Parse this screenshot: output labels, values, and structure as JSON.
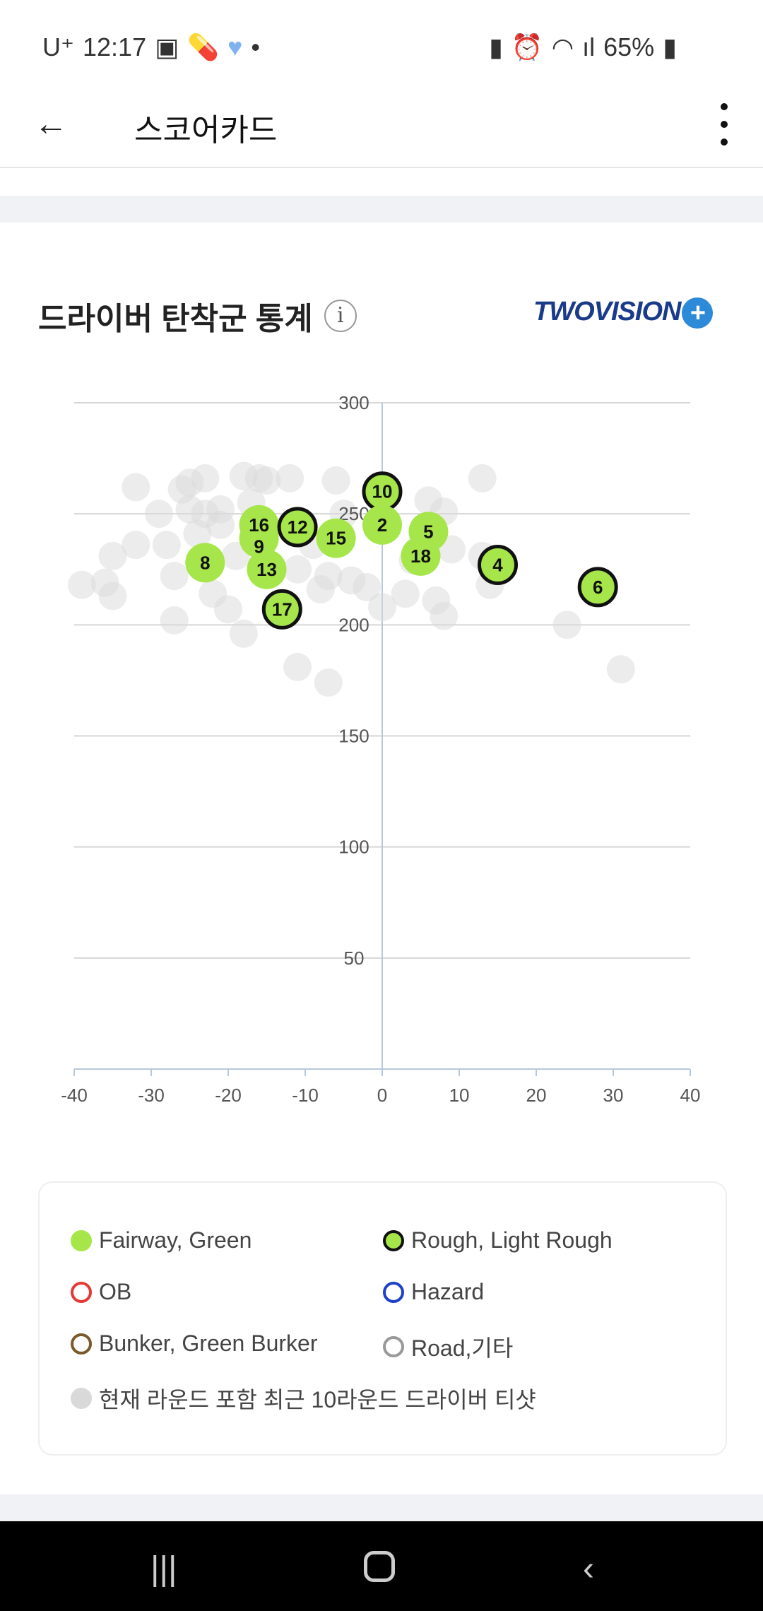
{
  "status": {
    "carrier": "U⁺",
    "time": "12:17",
    "battery": "65%"
  },
  "appbar": {
    "title": "스코어카드"
  },
  "section": {
    "title": "드라이버 탄착군 통계",
    "info": "i",
    "logo": "TWOVISION",
    "logo_badge": "PLUS"
  },
  "chart_data": {
    "type": "scatter",
    "xlim": [
      -40,
      40
    ],
    "ylim": [
      0,
      300
    ],
    "xticks": [
      -40,
      -30,
      -20,
      -10,
      0,
      10,
      20,
      30,
      40
    ],
    "yticks": [
      50,
      100,
      150,
      200,
      250,
      300
    ],
    "colors": {
      "fairway": "#a6e64a",
      "rough_outline": "#111111",
      "history": "#d9d9d9"
    },
    "holes": [
      {
        "label": "10",
        "x": 0,
        "y": 260,
        "type": "rough"
      },
      {
        "label": "2",
        "x": 0,
        "y": 245,
        "type": "fairway"
      },
      {
        "label": "16",
        "x": -16,
        "y": 245,
        "type": "fairway"
      },
      {
        "label": "12",
        "x": -11,
        "y": 244,
        "type": "rough"
      },
      {
        "label": "9",
        "x": -16,
        "y": 239,
        "type": "fairway"
      },
      {
        "label": "15",
        "x": -6,
        "y": 239,
        "type": "fairway"
      },
      {
        "label": "5",
        "x": 6,
        "y": 242,
        "type": "fairway"
      },
      {
        "label": "18",
        "x": 5,
        "y": 231,
        "type": "fairway"
      },
      {
        "label": "8",
        "x": -23,
        "y": 228,
        "type": "fairway"
      },
      {
        "label": "13",
        "x": -15,
        "y": 225,
        "type": "fairway"
      },
      {
        "label": "4",
        "x": 15,
        "y": 227,
        "type": "rough"
      },
      {
        "label": "6",
        "x": 28,
        "y": 217,
        "type": "rough"
      },
      {
        "label": "17",
        "x": -13,
        "y": 207,
        "type": "rough"
      }
    ],
    "history": [
      [
        -32,
        262
      ],
      [
        -26,
        261
      ],
      [
        -25,
        264
      ],
      [
        -23,
        266
      ],
      [
        -18,
        267
      ],
      [
        -16,
        266
      ],
      [
        -15,
        265
      ],
      [
        -12,
        266
      ],
      [
        -6,
        265
      ],
      [
        13,
        266
      ],
      [
        6,
        256
      ],
      [
        8,
        251
      ],
      [
        -32,
        236
      ],
      [
        -35,
        231
      ],
      [
        -39,
        218
      ],
      [
        -36,
        219
      ],
      [
        -35,
        213
      ],
      [
        -27,
        202
      ],
      [
        -18,
        196
      ],
      [
        -11,
        181
      ],
      [
        -7,
        174
      ],
      [
        31,
        180
      ],
      [
        24,
        200
      ],
      [
        8,
        204
      ],
      [
        7,
        211
      ],
      [
        0,
        208
      ],
      [
        3,
        214
      ],
      [
        -2,
        217
      ],
      [
        -8,
        216
      ],
      [
        -20,
        207
      ],
      [
        -22,
        214
      ],
      [
        -27,
        222
      ],
      [
        -24,
        241
      ],
      [
        -28,
        236
      ],
      [
        -21,
        252
      ],
      [
        -9,
        236
      ],
      [
        -7,
        222
      ],
      [
        -4,
        220
      ],
      [
        4,
        229
      ],
      [
        9,
        234
      ],
      [
        14,
        218
      ],
      [
        13,
        231
      ],
      [
        -5,
        250
      ],
      [
        -19,
        231
      ],
      [
        -11,
        225
      ],
      [
        -23,
        250
      ],
      [
        -21,
        245
      ],
      [
        -25,
        252
      ],
      [
        -17,
        255
      ],
      [
        -29,
        250
      ]
    ]
  },
  "legend": [
    {
      "label": "Fairway, Green",
      "fill": "#a6e64a",
      "stroke": "#a6e64a"
    },
    {
      "label": "Rough, Light Rough",
      "fill": "#a6e64a",
      "stroke": "#111111"
    },
    {
      "label": "OB",
      "fill": "#ffffff",
      "stroke": "#e53935"
    },
    {
      "label": "Hazard",
      "fill": "#ffffff",
      "stroke": "#1e40c8"
    },
    {
      "label": "Bunker, Green Burker",
      "fill": "#ffffff",
      "stroke": "#7a5a2a"
    },
    {
      "label": "Road,기타",
      "fill": "#ffffff",
      "stroke": "#999999"
    },
    {
      "label": "현재 라운드 포함 최근 10라운드 드라이버 티샷",
      "fill": "#d9d9d9",
      "stroke": "#d9d9d9"
    }
  ]
}
